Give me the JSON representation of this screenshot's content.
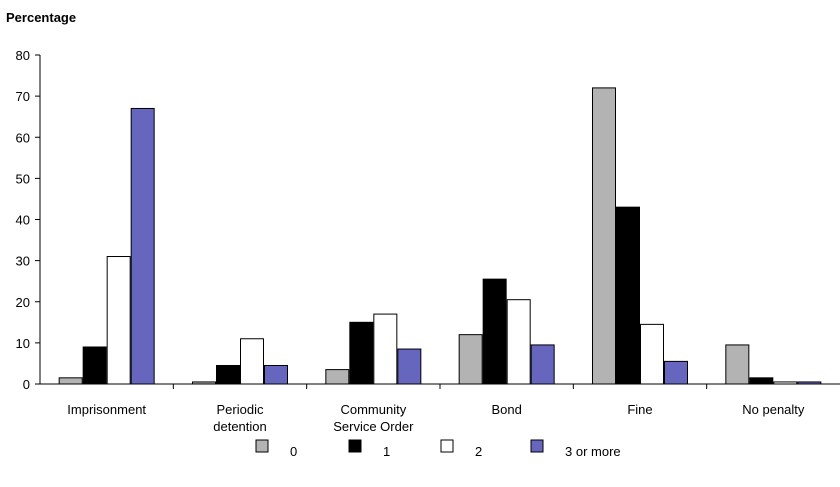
{
  "chart_data": {
    "type": "bar",
    "ylabel": "Percentage",
    "ylim": [
      0,
      80
    ],
    "yticks": [
      0,
      10,
      20,
      30,
      40,
      50,
      60,
      70,
      80
    ],
    "categories": [
      [
        "Imprisonment"
      ],
      [
        "Periodic",
        "detention"
      ],
      [
        "Community",
        "Service Order"
      ],
      [
        "Bond"
      ],
      [
        "Fine"
      ],
      [
        "No penalty"
      ]
    ],
    "series": [
      {
        "name": "0",
        "color": "#b3b3b3",
        "values": [
          1.5,
          0.5,
          3.5,
          12,
          72,
          9.5
        ]
      },
      {
        "name": "1",
        "color": "#000000",
        "values": [
          9,
          4.5,
          15,
          25.5,
          43,
          1.5
        ]
      },
      {
        "name": "2",
        "color": "#ffffff",
        "values": [
          31,
          11,
          17,
          20.5,
          14.5,
          0.5
        ]
      },
      {
        "name": "3 or more",
        "color": "#6666bf",
        "values": [
          67,
          4.5,
          8.5,
          9.5,
          5.5,
          0.5
        ]
      }
    ],
    "grid": false,
    "legend_position": "bottom"
  }
}
